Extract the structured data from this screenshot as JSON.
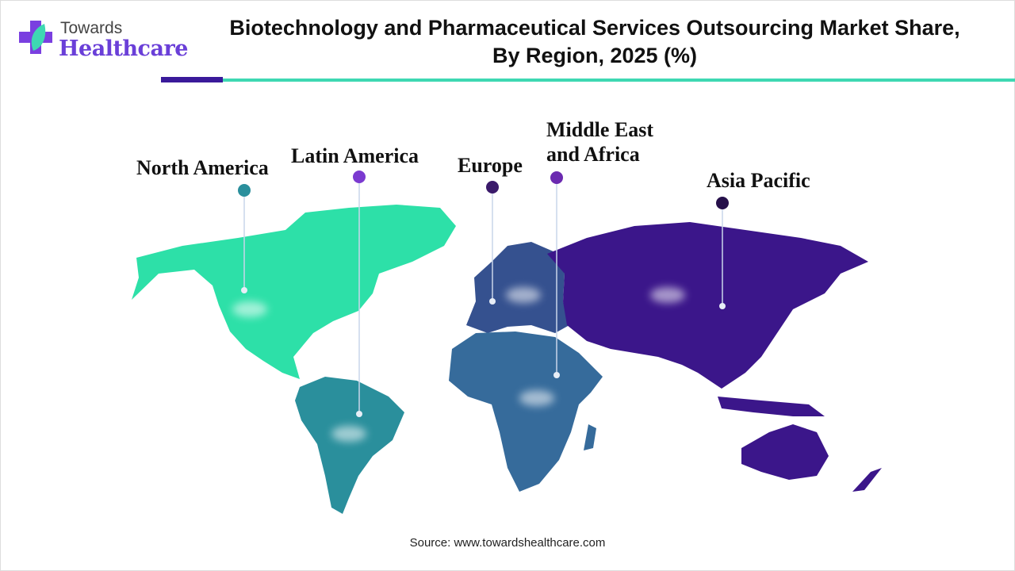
{
  "brand": {
    "top": "Towards",
    "bottom": "Healthcare"
  },
  "title": "Biotechnology and Pharmaceutical Services Outsourcing Market Share, By Region, 2025 (%)",
  "regions": [
    {
      "name": "North America",
      "color": "#2de0a8"
    },
    {
      "name": "Latin America",
      "color": "#2a8f9c"
    },
    {
      "name": "Europe",
      "color": "#35518f"
    },
    {
      "name": "Middle East and Africa",
      "color": "#366b9b"
    },
    {
      "name": "Asia Pacific",
      "color": "#3b168a"
    }
  ],
  "labels": {
    "north_america": "North America",
    "latin_america": "Latin America",
    "europe": "Europe",
    "mea_line1": "Middle East",
    "mea_line2": "and Africa",
    "asia_pacific": "Asia Pacific"
  },
  "source": "Source: www.towardshealthcare.com"
}
